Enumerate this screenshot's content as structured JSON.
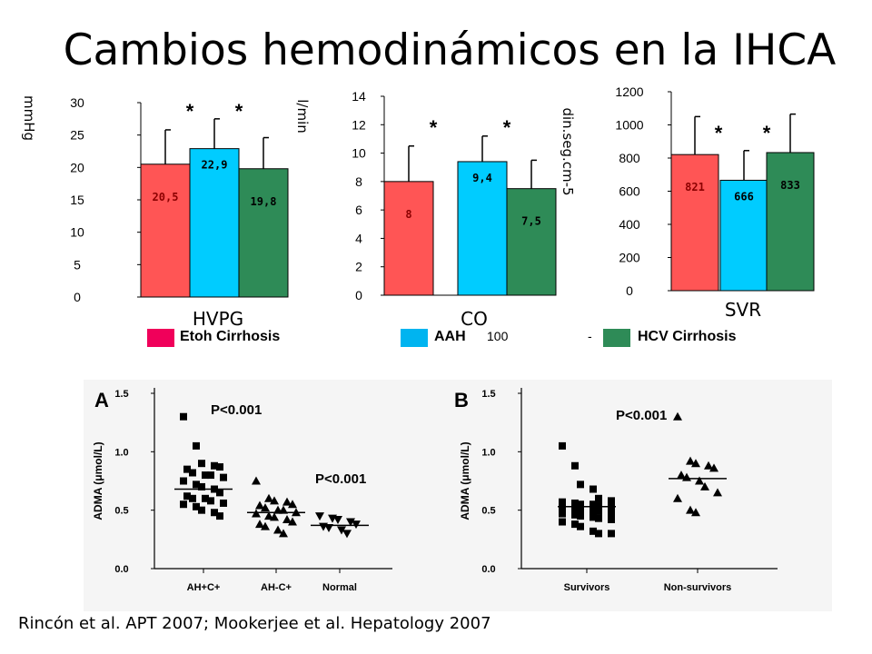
{
  "slide": {
    "title": "Cambios hemodinámicos en la IHCA",
    "citation": "Rincón et al. APT 2007; Mookerjee et al. Hepatology 2007"
  },
  "legend": {
    "items": [
      {
        "label": "Etoh Cirrhosis",
        "color": "#f0005a"
      },
      {
        "label": "AAH",
        "color": "#00b4f0"
      },
      {
        "label": "HCV Cirrhosis",
        "color": "#2e8b57"
      }
    ],
    "stray_number": "100",
    "stray_dash": "-"
  },
  "chart_data": [
    {
      "type": "bar",
      "title": "HVPG",
      "ylabel": "mmHg",
      "ylim": [
        0,
        30
      ],
      "yticks": [
        0,
        5,
        10,
        15,
        20,
        25,
        30
      ],
      "categories": [
        "Etoh Cirrhosis",
        "AAH",
        "HCV Cirrhosis"
      ],
      "values": [
        20.5,
        22.9,
        19.8
      ],
      "value_labels": [
        "20,5",
        "22,9",
        "19,8"
      ],
      "error_top": [
        25.8,
        27.5,
        24.6
      ],
      "colors": [
        "#ff5555",
        "#00ccff",
        "#2e8b57"
      ],
      "significance": [
        "*",
        "*"
      ]
    },
    {
      "type": "bar",
      "title": "CO",
      "ylabel": "l/min",
      "ylim": [
        0,
        14
      ],
      "yticks": [
        0,
        2,
        4,
        6,
        8,
        10,
        12,
        14
      ],
      "categories": [
        "Etoh Cirrhosis",
        "AAH",
        "HCV Cirrhosis"
      ],
      "values": [
        8,
        9.4,
        7.5
      ],
      "value_labels": [
        "8",
        "9,4",
        "7,5"
      ],
      "error_top": [
        10.5,
        11.2,
        9.5
      ],
      "colors": [
        "#ff5555",
        "#00ccff",
        "#2e8b57"
      ],
      "significance": [
        "*",
        "*"
      ]
    },
    {
      "type": "bar",
      "title": "SVR",
      "ylabel": "din.seg.cm-5",
      "ylim": [
        0,
        1200
      ],
      "yticks": [
        0,
        200,
        400,
        600,
        800,
        1000,
        1200
      ],
      "categories": [
        "Etoh Cirrhosis",
        "AAH",
        "HCV Cirrhosis"
      ],
      "values": [
        821,
        666,
        833
      ],
      "value_labels": [
        "821",
        "666",
        "833"
      ],
      "error_top": [
        1050,
        845,
        1065
      ],
      "colors": [
        "#ff5555",
        "#00ccff",
        "#2e8b57"
      ],
      "significance": [
        "*",
        "*"
      ]
    },
    {
      "type": "scatter",
      "panel_label": "A",
      "ylabel": "ADMA (μmol/L)",
      "ylim": [
        0,
        1.5
      ],
      "ytick_labels": [
        "0.0",
        "0.5",
        "1.0",
        "1.5"
      ],
      "categories": [
        "AH+C+",
        "AH-C+",
        "Normal"
      ],
      "series": [
        {
          "category": "AH+C+",
          "marker": "square",
          "median": 0.68,
          "values": [
            1.3,
            1.05,
            0.9,
            0.88,
            0.87,
            0.85,
            0.82,
            0.8,
            0.8,
            0.78,
            0.75,
            0.72,
            0.7,
            0.68,
            0.65,
            0.62,
            0.6,
            0.6,
            0.58,
            0.56,
            0.55,
            0.53,
            0.5,
            0.48,
            0.45
          ]
        },
        {
          "category": "AH-C+",
          "marker": "triangle-up",
          "median": 0.48,
          "values": [
            0.75,
            0.6,
            0.58,
            0.57,
            0.55,
            0.54,
            0.52,
            0.5,
            0.5,
            0.48,
            0.47,
            0.45,
            0.44,
            0.42,
            0.4,
            0.38,
            0.36,
            0.33,
            0.3
          ]
        },
        {
          "category": "Normal",
          "marker": "triangle-down",
          "median": 0.37,
          "values": [
            0.45,
            0.43,
            0.42,
            0.4,
            0.38,
            0.36,
            0.35,
            0.33,
            0.3
          ]
        }
      ],
      "annotations": [
        "P<0.001",
        "P<0.001"
      ]
    },
    {
      "type": "scatter",
      "panel_label": "B",
      "ylabel": "ADMA (μmol/L)",
      "ylim": [
        0,
        1.5
      ],
      "ytick_labels": [
        "0.0",
        "0.5",
        "1.0",
        "1.5"
      ],
      "categories": [
        "Survivors",
        "Non-survivors"
      ],
      "series": [
        {
          "category": "Survivors",
          "marker": "square",
          "median": 0.53,
          "values": [
            1.05,
            0.88,
            0.72,
            0.68,
            0.6,
            0.58,
            0.57,
            0.56,
            0.55,
            0.55,
            0.54,
            0.53,
            0.52,
            0.52,
            0.5,
            0.5,
            0.49,
            0.48,
            0.47,
            0.46,
            0.45,
            0.44,
            0.43,
            0.42,
            0.4,
            0.38,
            0.36,
            0.32,
            0.3,
            0.3
          ]
        },
        {
          "category": "Non-survivors",
          "marker": "triangle-up",
          "median": 0.77,
          "values": [
            1.3,
            0.92,
            0.9,
            0.88,
            0.86,
            0.8,
            0.78,
            0.75,
            0.7,
            0.65,
            0.6,
            0.5,
            0.48
          ]
        }
      ],
      "annotations": [
        "P<0.001"
      ]
    }
  ]
}
